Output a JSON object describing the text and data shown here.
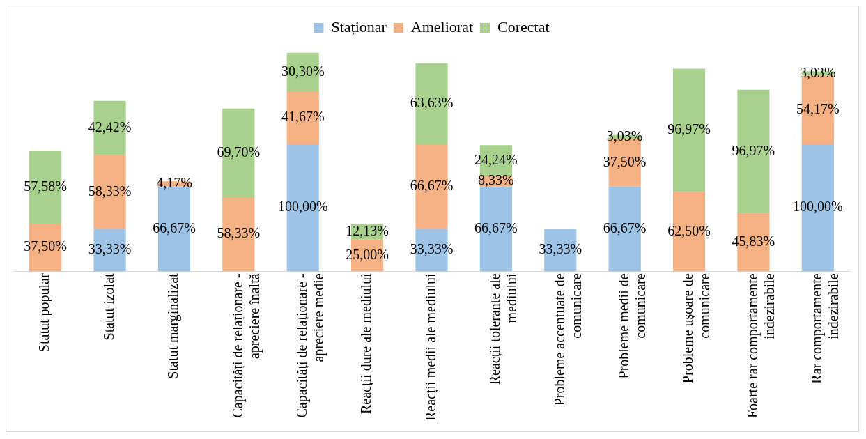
{
  "chart_data": {
    "type": "bar",
    "stacked": true,
    "legend": "top",
    "tick_labels": "x",
    "grid": false,
    "categories": [
      "Statut popular",
      "Statut izolat",
      "Statut marginalizat",
      "Capacități de relaționare - apreciere înaltă",
      "Capacități de relaționare - apreciere medie",
      "Reacții dure ale mediului",
      "Reacții medii ale mediului",
      "Reacții tolerante ale mediului",
      "Probleme accentuate de comunicare",
      "Probleme medii de comunicare",
      "Probleme ușoare de comunicare",
      "Foarte rar comportamente indezirabile",
      "Rar comportamente indezirabile"
    ],
    "series": [
      {
        "name": "Staționar",
        "color": "#9dc3e6",
        "values": [
          null,
          33.33,
          66.67,
          null,
          100,
          null,
          33.33,
          66.67,
          33.33,
          66.67,
          null,
          null,
          100
        ],
        "value_labels": [
          null,
          "33,33%",
          "66,67%",
          null,
          "100,00%",
          null,
          "33,33%",
          "66,67%",
          "33,33%",
          "66,67%",
          null,
          null,
          "100,00%"
        ]
      },
      {
        "name": "Ameliorat",
        "color": "#f4b183",
        "values": [
          37.5,
          58.33,
          4.17,
          58.33,
          41.67,
          25,
          66.67,
          8.33,
          null,
          37.5,
          62.5,
          45.83,
          54.17
        ],
        "value_labels": [
          "37,50%",
          "58,33%",
          "4,17%",
          "58,33%",
          "41,67%",
          "25,00%",
          "66,67%",
          "8,33%",
          null,
          "37,50%",
          "62,50%",
          "45,83%",
          "54,17%"
        ]
      },
      {
        "name": "Corectat",
        "color": "#a9d18e",
        "values": [
          57.58,
          42.42,
          null,
          69.7,
          30.3,
          12.13,
          63.63,
          24.24,
          null,
          3.03,
          96.97,
          96.97,
          3.03
        ],
        "value_labels": [
          "57,58%",
          "42,42%",
          null,
          "69,70%",
          "30,30%",
          "12,13%",
          "63,63%",
          "24,24%",
          null,
          "3,03%",
          "96,97%",
          "96,97%",
          "3,03%"
        ]
      }
    ]
  }
}
